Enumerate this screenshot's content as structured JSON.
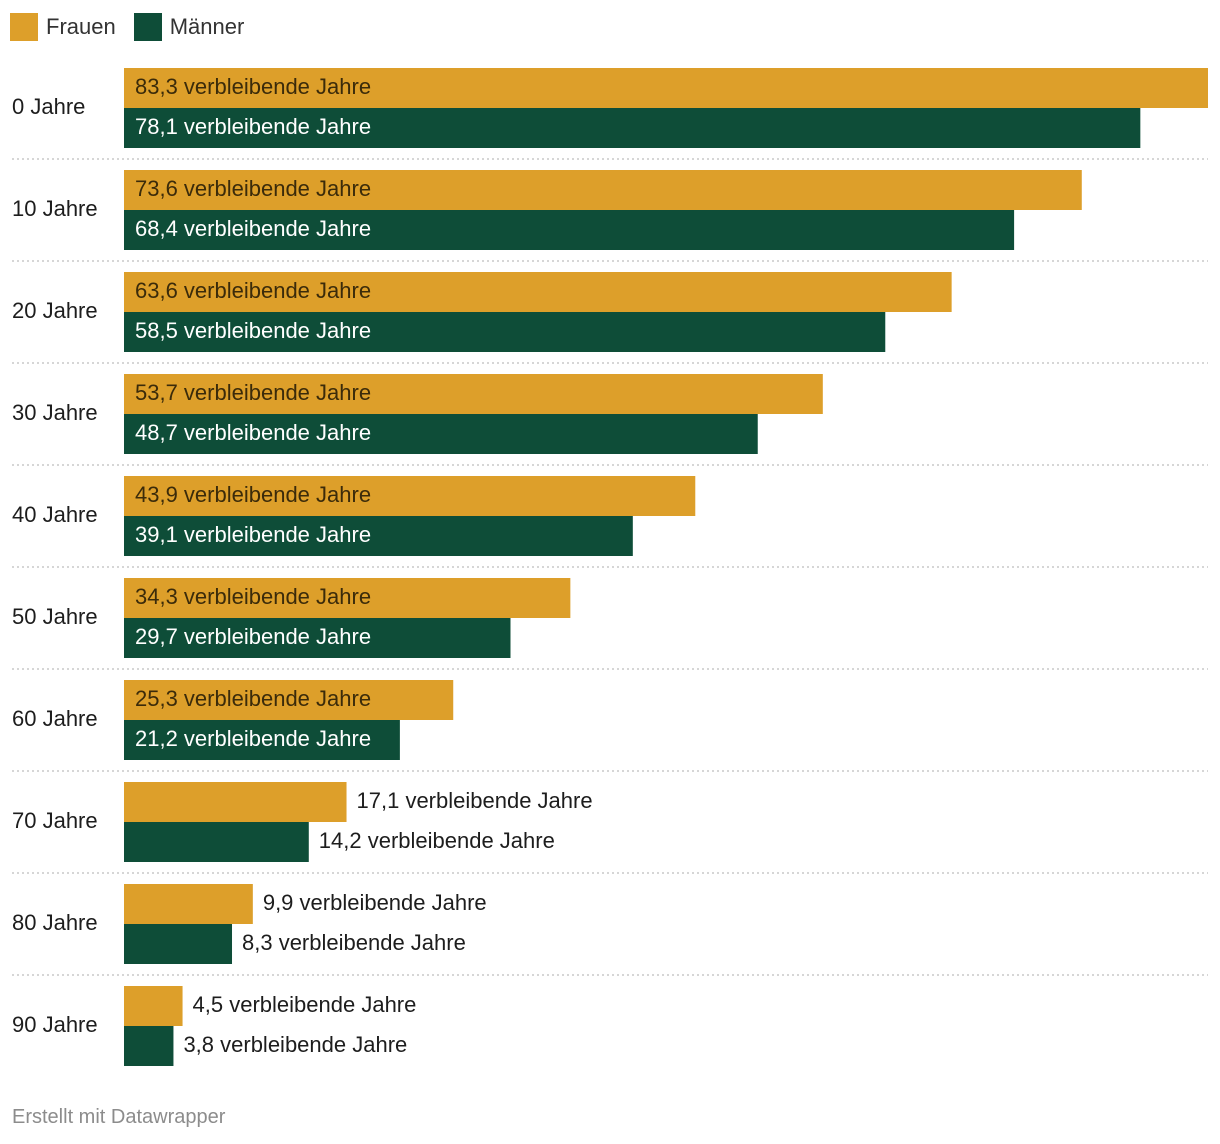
{
  "chart_data": {
    "type": "bar",
    "orientation": "horizontal",
    "categories": [
      "0 Jahre",
      "10 Jahre",
      "20 Jahre",
      "30 Jahre",
      "40 Jahre",
      "50 Jahre",
      "60 Jahre",
      "70 Jahre",
      "80 Jahre",
      "90 Jahre"
    ],
    "series": [
      {
        "name": "Frauen",
        "color": "#dd9f2a",
        "values": [
          83.3,
          73.6,
          63.6,
          53.7,
          43.9,
          34.3,
          25.3,
          17.1,
          9.9,
          4.5
        ],
        "labels": [
          "83,3 verbleibende Jahre",
          "73,6 verbleibende Jahre",
          "63,6 verbleibende Jahre",
          "53,7 verbleibende Jahre",
          "43,9 verbleibende Jahre",
          "34,3 verbleibende Jahre",
          "25,3 verbleibende Jahre",
          "17,1 verbleibende Jahre",
          "9,9 verbleibende Jahre",
          "4,5 verbleibende Jahre"
        ]
      },
      {
        "name": "Männer",
        "color": "#0e4d38",
        "values": [
          78.1,
          68.4,
          58.5,
          48.7,
          39.1,
          29.7,
          21.2,
          14.2,
          8.3,
          3.8
        ],
        "labels": [
          "78,1 verbleibende Jahre",
          "68,4 verbleibende Jahre",
          "58,5 verbleibende Jahre",
          "48,7 verbleibende Jahre",
          "39,1 verbleibende Jahre",
          "29,7 verbleibende Jahre",
          "21,2 verbleibende Jahre",
          "14,2 verbleibende Jahre",
          "8,3 verbleibende Jahre",
          "3,8 verbleibende Jahre"
        ]
      }
    ],
    "xlim": [
      0,
      83.3
    ],
    "grid": false,
    "legend": "top-left"
  },
  "legend": {
    "items": [
      {
        "label": "Frauen",
        "color": "#dd9f2a"
      },
      {
        "label": "Männer",
        "color": "#0e4d38"
      }
    ]
  },
  "footer": {
    "credit": "Erstellt mit Datawrapper"
  }
}
